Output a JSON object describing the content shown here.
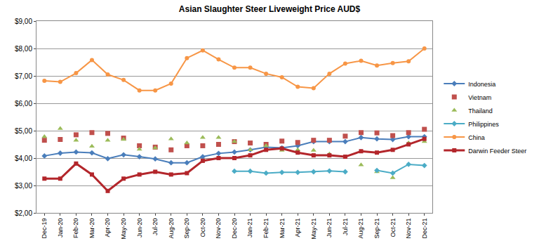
{
  "chart_data": {
    "type": "line",
    "title": "Asian Slaughter Steer Liveweight Price AUD$",
    "categories": [
      "Dec-19",
      "Jan-20",
      "Feb-20",
      "Mar-20",
      "Apr-20",
      "May-20",
      "Jun-20",
      "Jul-20",
      "Aug-20",
      "Sep-20",
      "Oct-20",
      "Nov-20",
      "Dec-20",
      "Jan-21",
      "Feb-21",
      "Mar-21",
      "Apr-21",
      "May-21",
      "Jun-21",
      "Jul-21",
      "Aug-21",
      "Sep-21",
      "Oct-21",
      "Nov-21",
      "Dec-21"
    ],
    "ylim": [
      2,
      9
    ],
    "yticks": [
      {
        "value": 2,
        "label": "$2,00"
      },
      {
        "value": 3,
        "label": "$3,00"
      },
      {
        "value": 4,
        "label": "$4,00"
      },
      {
        "value": 5,
        "label": "$5,00"
      },
      {
        "value": 6,
        "label": "$6,00"
      },
      {
        "value": 7,
        "label": "$7,00"
      },
      {
        "value": 8,
        "label": "$8,00"
      },
      {
        "value": 9,
        "label": "$9,00"
      }
    ],
    "grid": true,
    "legend": "right",
    "series": [
      {
        "name": "Indonesia",
        "type": "line",
        "color": "#4a7ebb",
        "marker": "diamond",
        "values": [
          4.08,
          4.18,
          4.22,
          4.19,
          3.98,
          4.12,
          4.05,
          3.97,
          3.83,
          3.83,
          4.05,
          4.17,
          4.22,
          4.3,
          4.4,
          4.37,
          4.45,
          4.6,
          4.6,
          4.6,
          4.75,
          4.7,
          4.68,
          4.78,
          4.78
        ]
      },
      {
        "name": "Vietnam",
        "type": "scatter",
        "color": "#c0504d",
        "marker": "square",
        "values": [
          4.65,
          4.68,
          4.85,
          4.93,
          4.9,
          4.73,
          4.45,
          4.4,
          4.3,
          4.45,
          4.45,
          4.5,
          4.6,
          4.55,
          4.5,
          4.62,
          4.57,
          4.65,
          4.65,
          4.8,
          4.93,
          4.92,
          4.82,
          4.93,
          5.05
        ]
      },
      {
        "name": "Thailand",
        "type": "scatter",
        "color": "#9bbb59",
        "marker": "triangle",
        "values": [
          4.78,
          5.08,
          4.65,
          4.43,
          4.65,
          4.68,
          4.32,
          4.37,
          4.7,
          4.55,
          4.75,
          4.75,
          4.6,
          4.3,
          4.45,
          4.28,
          4.3,
          4.28,
          4.15,
          null,
          3.75,
          3.5,
          3.28,
          4.55,
          4.6
        ]
      },
      {
        "name": "Philippines",
        "type": "line",
        "color": "#4bacc6",
        "marker": "diamond",
        "values": [
          null,
          null,
          null,
          null,
          null,
          null,
          null,
          null,
          null,
          null,
          null,
          null,
          3.52,
          3.52,
          3.45,
          3.48,
          3.48,
          3.5,
          3.53,
          3.5,
          null,
          3.55,
          3.45,
          3.77,
          3.73
        ]
      },
      {
        "name": "China",
        "type": "line",
        "color": "#f79646",
        "marker": "circle",
        "values": [
          6.82,
          6.78,
          7.1,
          7.58,
          7.05,
          6.85,
          6.47,
          6.47,
          6.72,
          7.65,
          7.93,
          7.6,
          7.3,
          7.3,
          7.08,
          6.95,
          6.6,
          6.55,
          7.08,
          7.45,
          7.55,
          7.38,
          7.47,
          7.53,
          8.0
        ]
      },
      {
        "name": "Darwin Feeder Steer",
        "type": "line",
        "color": "#b3262b",
        "marker": "square",
        "values": [
          3.25,
          3.25,
          3.8,
          3.4,
          2.8,
          3.25,
          3.4,
          3.5,
          3.4,
          3.45,
          3.9,
          4.0,
          4.0,
          4.1,
          4.3,
          4.35,
          4.2,
          4.1,
          4.1,
          4.05,
          4.25,
          4.2,
          4.3,
          4.5,
          4.7
        ]
      }
    ]
  }
}
